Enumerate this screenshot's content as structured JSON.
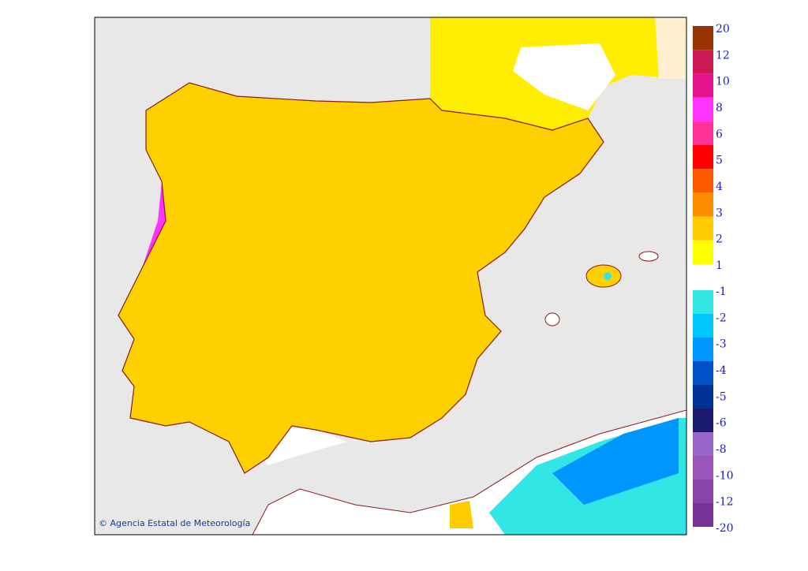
{
  "legend": {
    "positive": [
      {
        "value": 20,
        "color": "#993300"
      },
      {
        "value": 12,
        "color": "#cc1a55"
      },
      {
        "value": 10,
        "color": "#e6148c"
      },
      {
        "value": 8,
        "color": "#ff33ff"
      },
      {
        "value": 6,
        "color": "#ff3399"
      },
      {
        "value": 5,
        "color": "#ff0000"
      },
      {
        "value": 4,
        "color": "#ff5a00"
      },
      {
        "value": 3,
        "color": "#ff8c00"
      },
      {
        "value": 2,
        "color": "#ffcc00"
      },
      {
        "value": 1,
        "color": "#ffff00"
      }
    ],
    "negative": [
      {
        "value": -1,
        "color": "#33e6e6"
      },
      {
        "value": -2,
        "color": "#00c8ff"
      },
      {
        "value": -3,
        "color": "#0096ff"
      },
      {
        "value": -4,
        "color": "#0050c8"
      },
      {
        "value": -5,
        "color": "#003296"
      },
      {
        "value": -6,
        "color": "#1a1a6e"
      },
      {
        "value": -8,
        "color": "#9966cc"
      },
      {
        "value": -10,
        "color": "#9955bb"
      },
      {
        "value": -12,
        "color": "#8844aa"
      },
      {
        "value": -20,
        "color": "#773399"
      }
    ]
  },
  "copyright": "© Agencia Estatal de Meteorología"
}
